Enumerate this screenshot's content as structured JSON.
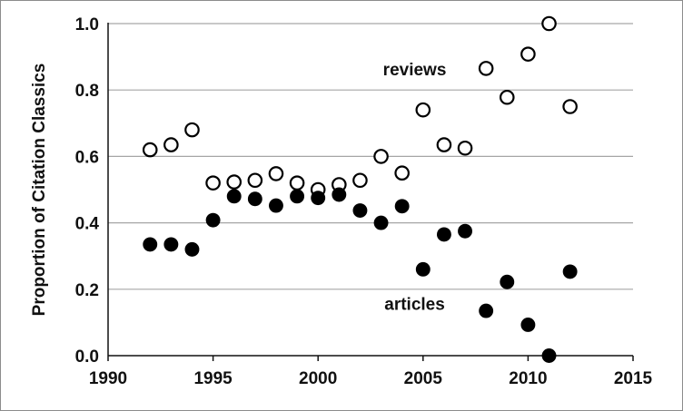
{
  "chart_data": {
    "type": "scatter",
    "xlim": [
      1990,
      2015
    ],
    "ylim": [
      0.0,
      1.0
    ],
    "x_ticks": [
      "1990",
      "1995",
      "2000",
      "2005",
      "2010",
      "2015"
    ],
    "y_ticks": [
      "0.0",
      "0.2",
      "0.4",
      "0.6",
      "0.8",
      "1.0"
    ],
    "ylabel": "Proportion of Citation Classics",
    "xlabel": "",
    "grid": "horizontal",
    "legend": "none",
    "annotations": [
      "reviews",
      "articles"
    ],
    "series": [
      {
        "name": "reviews",
        "marker": "open-circle",
        "x": [
          1992,
          1993,
          1994,
          1995,
          1996,
          1997,
          1998,
          1999,
          2000,
          2001,
          2002,
          2003,
          2004,
          2005,
          2006,
          2007,
          2008,
          2009,
          2010,
          2011,
          2012
        ],
        "y": [
          0.62,
          0.635,
          0.68,
          0.52,
          0.523,
          0.528,
          0.548,
          0.52,
          0.5,
          0.515,
          0.528,
          0.6,
          0.55,
          0.74,
          0.635,
          0.625,
          0.865,
          0.778,
          0.908,
          1.0,
          0.75
        ]
      },
      {
        "name": "articles",
        "marker": "filled-circle",
        "x": [
          1992,
          1993,
          1994,
          1995,
          1996,
          1997,
          1998,
          1999,
          2000,
          2001,
          2002,
          2003,
          2004,
          2005,
          2006,
          2007,
          2008,
          2009,
          2010,
          2011,
          2012
        ],
        "y": [
          0.335,
          0.335,
          0.32,
          0.408,
          0.48,
          0.472,
          0.452,
          0.48,
          0.475,
          0.485,
          0.437,
          0.4,
          0.45,
          0.26,
          0.365,
          0.375,
          0.135,
          0.222,
          0.093,
          0.0,
          0.253
        ]
      }
    ]
  },
  "colors": {
    "axis": "#111111",
    "grid": "#a6a6a6",
    "marker_stroke": "#000000",
    "open_fill": "#ffffff",
    "filled_fill": "#000000"
  }
}
